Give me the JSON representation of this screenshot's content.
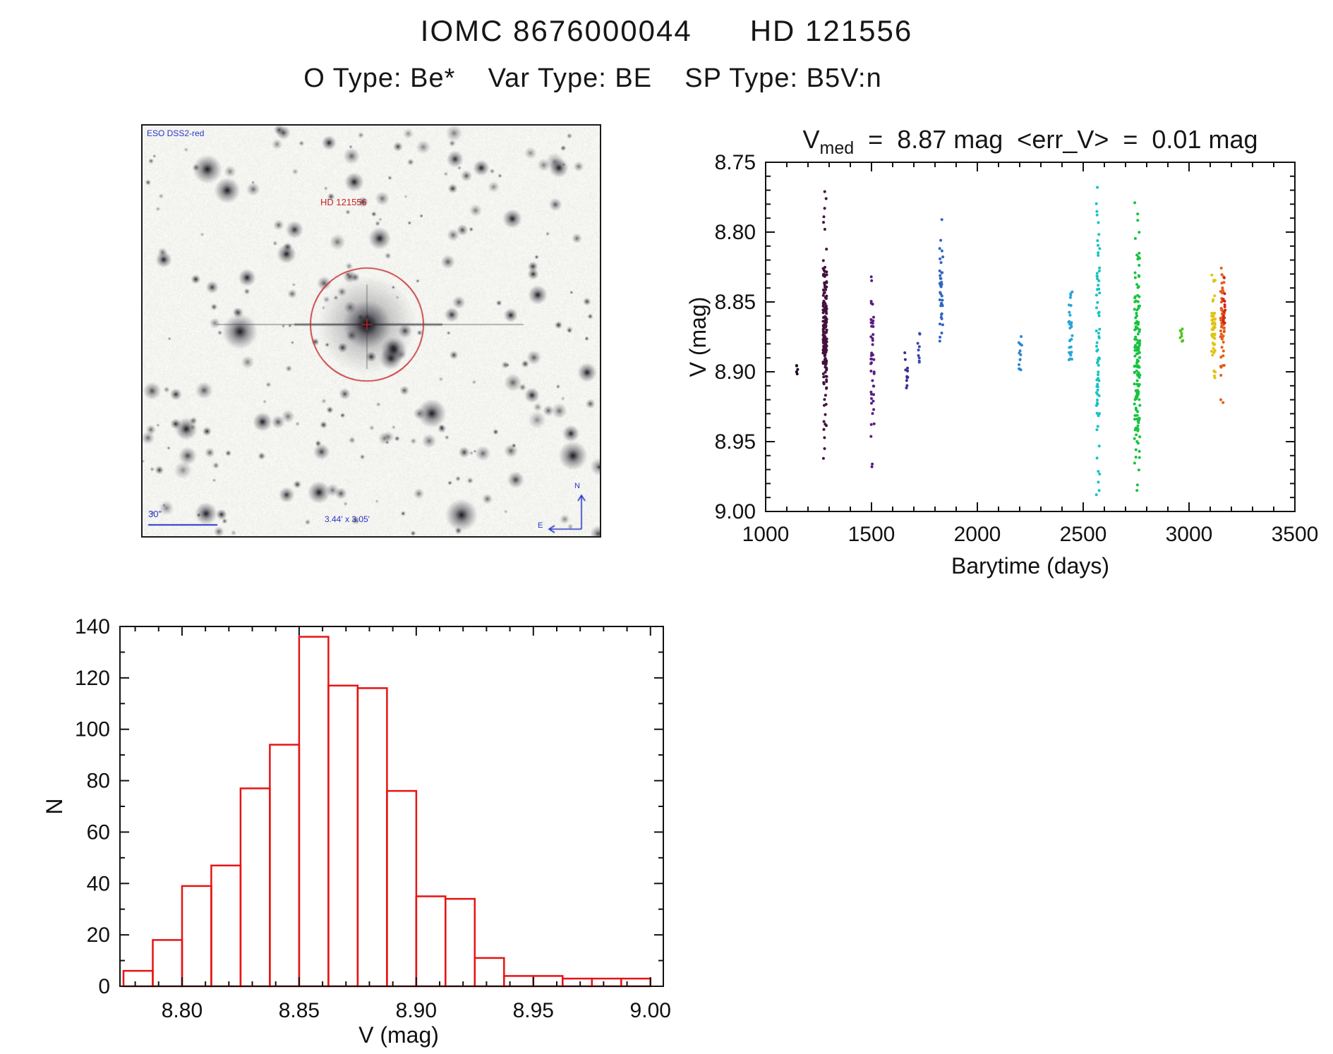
{
  "header": {
    "title": "IOMC 8676000044      HD 121556",
    "subtitle": "O Type: Be*    Var Type: BE    SP Type: B5V:n"
  },
  "finder": {
    "survey_label": "ESO DSS2-red",
    "star_label": "HD 121556",
    "scale_label": "30\"",
    "fov_label": "3.44' x 3.05'",
    "compass_north": "N",
    "compass_east": "E",
    "annotation_color": "#c12525",
    "caption_color": "#2936c8"
  },
  "chart_data": [
    {
      "type": "scatter",
      "title": {
        "prefix": "V",
        "subscript": "med",
        "suffix": "  =  8.87 mag  <err_V>  =  0.01 mag"
      },
      "xlabel": "Barytime (days)",
      "ylabel": "V (mag)",
      "xlim": [
        1000,
        3500
      ],
      "ylim_top": 8.75,
      "ylim_bottom": 9.0,
      "x_minor_step": 100,
      "y_minor_step": 0.01,
      "grid": false,
      "legend": "none",
      "seed": 20,
      "xticks": [
        {
          "v": 1000,
          "label": "1000"
        },
        {
          "v": 1500,
          "label": "1500"
        },
        {
          "v": 2000,
          "label": "2000"
        },
        {
          "v": 2500,
          "label": "2500"
        },
        {
          "v": 3000,
          "label": "3000"
        },
        {
          "v": 3500,
          "label": "3500"
        }
      ],
      "yticks": [
        {
          "v": 8.75,
          "label": "8.75"
        },
        {
          "v": 8.8,
          "label": "8.80"
        },
        {
          "v": 8.85,
          "label": "8.85"
        },
        {
          "v": 8.9,
          "label": "8.90"
        },
        {
          "v": 8.95,
          "label": "8.95"
        },
        {
          "v": 9.0,
          "label": "9.00"
        }
      ],
      "clusters": [
        {
          "x": 1150,
          "xj": 6,
          "n": 5,
          "mu": 8.9,
          "sig": 0.003,
          "lo": 8.894,
          "hi": 8.906,
          "color": "#1e0a28"
        },
        {
          "x": 1280,
          "xj": 9,
          "n": 165,
          "mu": 8.872,
          "sig": 0.03,
          "lo": 8.778,
          "hi": 8.958,
          "color": "#44113e",
          "extra_y": [
            8.771,
            8.776,
            8.783,
            8.789,
            8.793,
            8.955,
            8.962
          ]
        },
        {
          "x": 1505,
          "xj": 8,
          "n": 42,
          "mu": 8.897,
          "sig": 0.028,
          "lo": 8.833,
          "hi": 8.96,
          "color": "#5b1d82",
          "extra_y": [
            8.832,
            8.966,
            8.968
          ]
        },
        {
          "x": 1665,
          "xj": 9,
          "n": 11,
          "mu": 8.9,
          "sig": 0.008,
          "lo": 8.884,
          "hi": 8.914,
          "color": "#3d2d96"
        },
        {
          "x": 1725,
          "xj": 7,
          "n": 9,
          "mu": 8.884,
          "sig": 0.013,
          "lo": 8.856,
          "hi": 8.91,
          "color": "#3a49b4"
        },
        {
          "x": 1830,
          "xj": 8,
          "n": 38,
          "mu": 8.84,
          "sig": 0.02,
          "lo": 8.796,
          "hi": 8.882,
          "color": "#2f66c3",
          "extra_y": [
            8.791
          ]
        },
        {
          "x": 2205,
          "xj": 9,
          "n": 13,
          "mu": 8.889,
          "sig": 0.011,
          "lo": 8.869,
          "hi": 8.904,
          "color": "#2f86cd"
        },
        {
          "x": 2440,
          "xj": 9,
          "n": 28,
          "mu": 8.872,
          "sig": 0.018,
          "lo": 8.83,
          "hi": 8.908,
          "color": "#2aa4d7"
        },
        {
          "x": 2570,
          "xj": 8,
          "n": 68,
          "mu": 8.882,
          "sig": 0.05,
          "lo": 8.772,
          "hi": 8.975,
          "color": "#17c3c3",
          "extra_y": [
            8.768,
            8.979,
            8.985,
            8.988
          ]
        },
        {
          "x": 2755,
          "xj": 13,
          "n": 150,
          "mu": 8.896,
          "sig": 0.038,
          "lo": 8.782,
          "hi": 8.972,
          "color": "#17c33e",
          "extra_y": [
            8.779,
            8.787,
            8.981,
            8.985
          ]
        },
        {
          "x": 2965,
          "xj": 8,
          "n": 8,
          "mu": 8.877,
          "sig": 0.005,
          "lo": 8.868,
          "hi": 8.887,
          "color": "#52c31e"
        },
        {
          "x": 3115,
          "xj": 9,
          "n": 52,
          "mu": 8.872,
          "sig": 0.017,
          "lo": 8.83,
          "hi": 8.905,
          "color": "#e0c414"
        },
        {
          "x": 3158,
          "xj": 9,
          "n": 55,
          "mu": 8.866,
          "sig": 0.018,
          "lo": 8.82,
          "hi": 8.915,
          "color": "#e55d17",
          "extra_y": [
            8.92,
            8.922
          ]
        },
        {
          "x": 3165,
          "xj": 6,
          "n": 18,
          "mu": 8.852,
          "sig": 0.011,
          "lo": 8.832,
          "hi": 8.876,
          "color": "#d3261a"
        }
      ]
    },
    {
      "type": "bar",
      "title": "",
      "xlabel": "V (mag)",
      "ylabel": "N",
      "xlim": [
        8.7735,
        9.0055
      ],
      "ylim": [
        0,
        140
      ],
      "bin_start": 8.775,
      "bin_width": 0.0125,
      "counts": [
        6,
        18,
        39,
        47,
        77,
        94,
        136,
        117,
        116,
        76,
        35,
        34,
        11,
        4,
        4,
        3,
        3,
        3
      ],
      "bar_color": "#e61414",
      "x_minor_step": 0.01,
      "y_minor_step": 10,
      "grid": false,
      "xticks": [
        {
          "v": 8.8,
          "label": "8.80"
        },
        {
          "v": 8.85,
          "label": "8.85"
        },
        {
          "v": 8.9,
          "label": "8.90"
        },
        {
          "v": 8.95,
          "label": "8.95"
        },
        {
          "v": 9.0,
          "label": "9.00"
        }
      ],
      "yticks": [
        {
          "v": 0,
          "label": "0"
        },
        {
          "v": 20,
          "label": "20"
        },
        {
          "v": 40,
          "label": "40"
        },
        {
          "v": 60,
          "label": "60"
        },
        {
          "v": 80,
          "label": "80"
        },
        {
          "v": 100,
          "label": "100"
        },
        {
          "v": 120,
          "label": "120"
        },
        {
          "v": 140,
          "label": "140"
        }
      ]
    }
  ]
}
